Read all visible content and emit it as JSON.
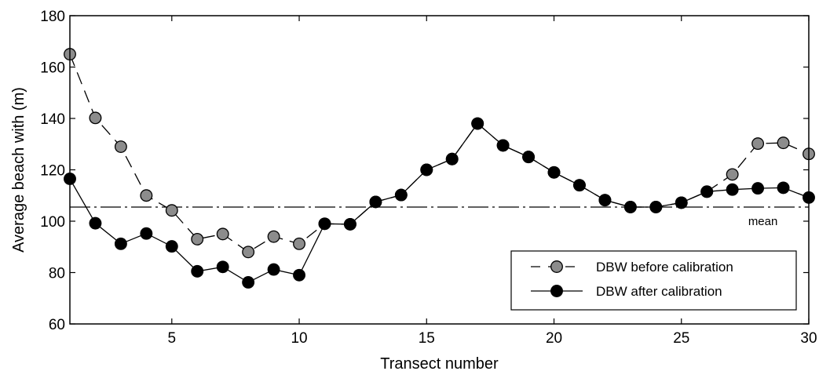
{
  "chart_data": {
    "type": "line",
    "title": "",
    "xlabel": "Transect number",
    "ylabel": "Average beach with (m)",
    "xlim": [
      1,
      30
    ],
    "ylim": [
      60,
      180
    ],
    "xticks": [
      5,
      10,
      15,
      20,
      25,
      30
    ],
    "yticks": [
      60,
      80,
      100,
      120,
      140,
      160,
      180
    ],
    "xtick_labels": [
      "5",
      "10",
      "15",
      "20",
      "25",
      "30"
    ],
    "ytick_labels": [
      "60",
      "80",
      "100",
      "120",
      "140",
      "160",
      "180"
    ],
    "grid": false,
    "legend_position": "bottom-right",
    "mean": {
      "value": 105.5,
      "label": "mean",
      "color": "#000000"
    },
    "series": [
      {
        "name": "DBW before calibration",
        "line_style": "dashed",
        "marker_color": "#8c8c8c",
        "x": [
          1,
          2,
          3,
          4,
          5,
          6,
          7,
          8,
          9,
          10,
          11,
          12,
          13,
          14,
          15,
          16,
          17,
          18,
          19,
          20,
          21,
          22,
          23,
          24,
          25,
          26,
          27,
          28,
          29,
          30
        ],
        "values": [
          165,
          140.2,
          129,
          110,
          104.2,
          93,
          95,
          88,
          94,
          91.2,
          99,
          98.8,
          107.5,
          110.2,
          120,
          124.2,
          138,
          129.5,
          125,
          119,
          114,
          108.2,
          105.5,
          105.5,
          107.2,
          111.5,
          118.2,
          130.2,
          130.5,
          126.2
        ]
      },
      {
        "name": "DBW after calibration",
        "line_style": "solid",
        "marker_color": "#000000",
        "x": [
          1,
          2,
          3,
          4,
          5,
          6,
          7,
          8,
          9,
          10,
          11,
          12,
          13,
          14,
          15,
          16,
          17,
          18,
          19,
          20,
          21,
          22,
          23,
          24,
          25,
          26,
          27,
          28,
          29,
          30
        ],
        "values": [
          116.5,
          99.2,
          91.2,
          95.2,
          90.2,
          80.5,
          82.2,
          76.2,
          81.2,
          79,
          99,
          98.8,
          107.5,
          110.2,
          120,
          124.2,
          138,
          129.5,
          125,
          119,
          114,
          108.2,
          105.5,
          105.5,
          107.2,
          111.5,
          112.3,
          112.8,
          113,
          109.2
        ]
      }
    ]
  }
}
